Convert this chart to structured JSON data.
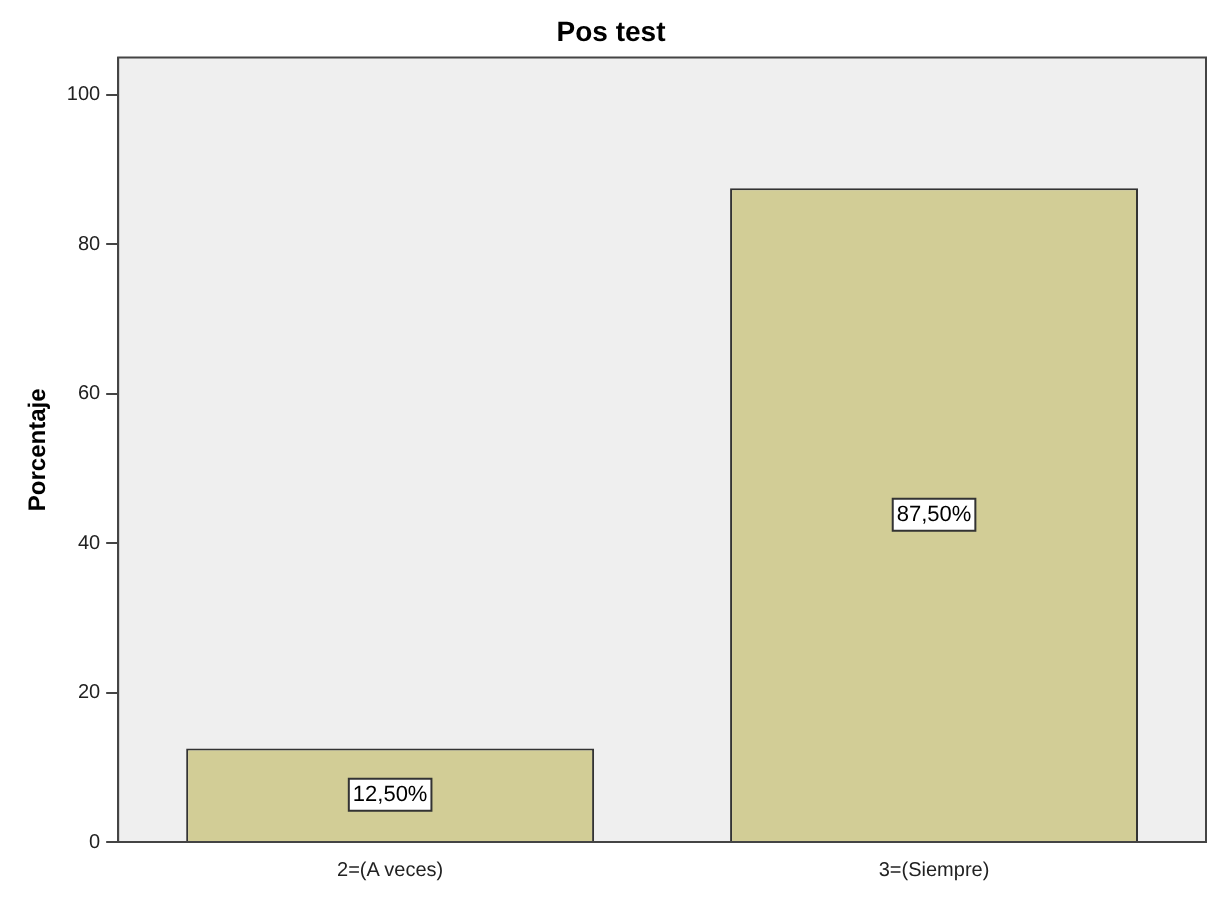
{
  "chart_data": {
    "type": "bar",
    "title": "Pos test",
    "ylabel": "Porcentaje",
    "categories": [
      "2=(A veces)",
      "3=(Siempre)"
    ],
    "values": [
      12.5,
      87.5
    ],
    "value_labels": [
      "12,50%",
      "87,50%"
    ],
    "color": "#d2cd96",
    "ylim": [
      0,
      105
    ],
    "yticks": [
      0,
      20,
      40,
      60,
      80,
      100
    ],
    "grid": false,
    "legend": false
  }
}
